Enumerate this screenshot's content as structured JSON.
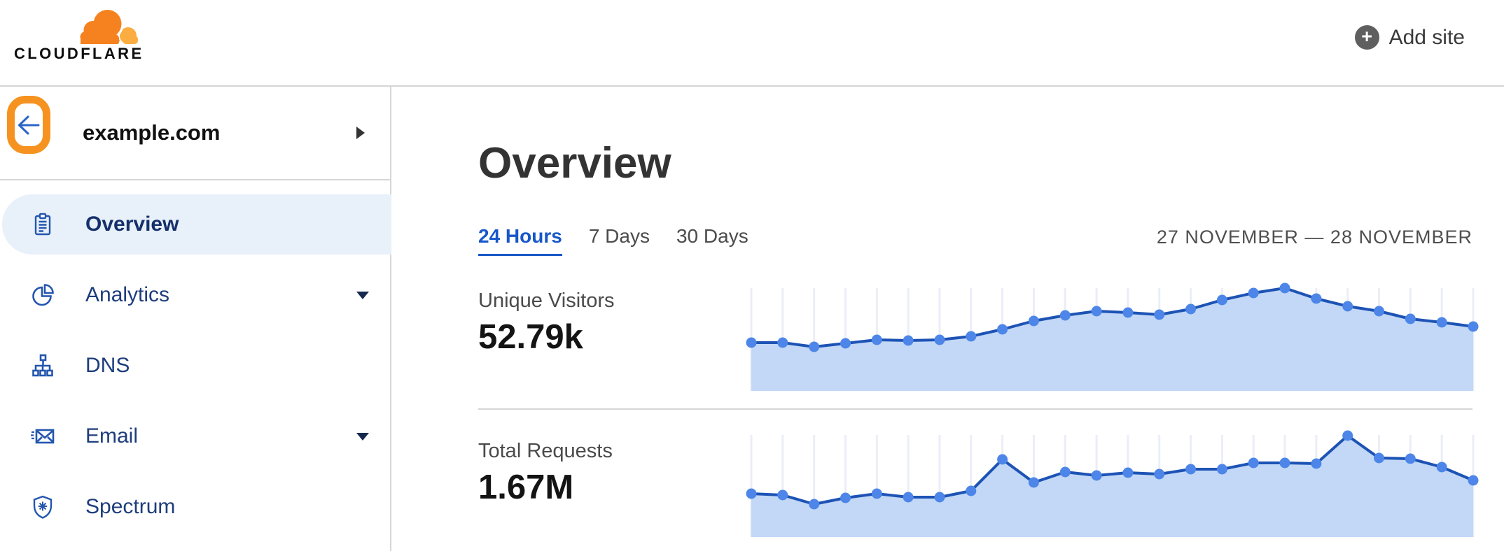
{
  "header": {
    "logo": {
      "wordmark": "CLOUDFLARE"
    },
    "add_site": {
      "label": "Add site"
    }
  },
  "sidebar": {
    "site": {
      "name": "example.com"
    },
    "items": [
      {
        "label": "Overview",
        "icon": "clipboard-icon",
        "selected": true,
        "has_submenu": false
      },
      {
        "label": "Analytics",
        "icon": "pie-chart-icon",
        "selected": false,
        "has_submenu": true
      },
      {
        "label": "DNS",
        "icon": "dns-tree-icon",
        "selected": false,
        "has_submenu": false
      },
      {
        "label": "Email",
        "icon": "email-send-icon",
        "selected": false,
        "has_submenu": true
      },
      {
        "label": "Spectrum",
        "icon": "shield-spectrum-icon",
        "selected": false,
        "has_submenu": false
      }
    ]
  },
  "main": {
    "title": "Overview",
    "tabs": [
      {
        "label": "24 Hours",
        "active": true
      },
      {
        "label": "7 Days",
        "active": false
      },
      {
        "label": "30 Days",
        "active": false
      }
    ],
    "date_range": "27 NOVEMBER — 28 NOVEMBER",
    "metrics": [
      {
        "label": "Unique Visitors",
        "value": "52.79k"
      },
      {
        "label": "Total Requests",
        "value": "1.67M"
      }
    ]
  },
  "colors": {
    "brand_orange": "#f6821f",
    "brand_orange_light": "#fbad41",
    "annotation_ring_orange": "#f69320",
    "nav_icon_blue": "#2456ae",
    "nav_text_blue": "#1e3d7b",
    "selected_item_bg": "#e8f0fa",
    "active_tab_blue": "#1757c8",
    "back_arrow_blue": "#2b66c8",
    "chart_line": "#1d53b5",
    "chart_dot": "#4d86e8",
    "chart_fill": "#c2d8f6",
    "chart_grid": "#ebeef7",
    "divider_gray": "#d6d6d6"
  },
  "chart_data": [
    {
      "type": "area",
      "title": "Unique Visitors",
      "total_label": "52.79k",
      "x": [
        0,
        1,
        2,
        3,
        4,
        5,
        6,
        7,
        8,
        9,
        10,
        11,
        12,
        13,
        14,
        15,
        16,
        17,
        18,
        19,
        20,
        21,
        22,
        23
      ],
      "xlabel": "hourly points across 24-hour window (27 Nov — 28 Nov)",
      "ylabel": "",
      "values": [
        69,
        69,
        63,
        68,
        73,
        72,
        73,
        78,
        88,
        100,
        108,
        114,
        112,
        109,
        117,
        130,
        140,
        147,
        132,
        121,
        114,
        103,
        98,
        92
      ],
      "unit": "relative height — chart shows no y-axis tick labels",
      "grid": "vertical gridline at every data point, no horizontal grid",
      "legend": "none",
      "markers": "filled circle at every point"
    },
    {
      "type": "area",
      "title": "Total Requests",
      "total_label": "1.67M",
      "x": [
        0,
        1,
        2,
        3,
        4,
        5,
        6,
        7,
        8,
        9,
        10,
        11,
        12,
        13,
        14,
        15,
        16,
        17,
        18,
        19,
        20,
        21,
        22,
        23
      ],
      "xlabel": "hourly points across 24-hour window (27 Nov — 28 Nov)",
      "ylabel": "",
      "values": [
        62,
        60,
        47,
        56,
        62,
        57,
        57,
        66,
        111,
        78,
        93,
        88,
        92,
        90,
        97,
        97,
        106,
        106,
        105,
        145,
        113,
        112,
        100,
        81
      ],
      "unit": "relative height — chart shows no y-axis tick labels",
      "grid": "vertical gridline at every data point, no horizontal grid",
      "legend": "none",
      "markers": "filled circle at every point"
    }
  ]
}
